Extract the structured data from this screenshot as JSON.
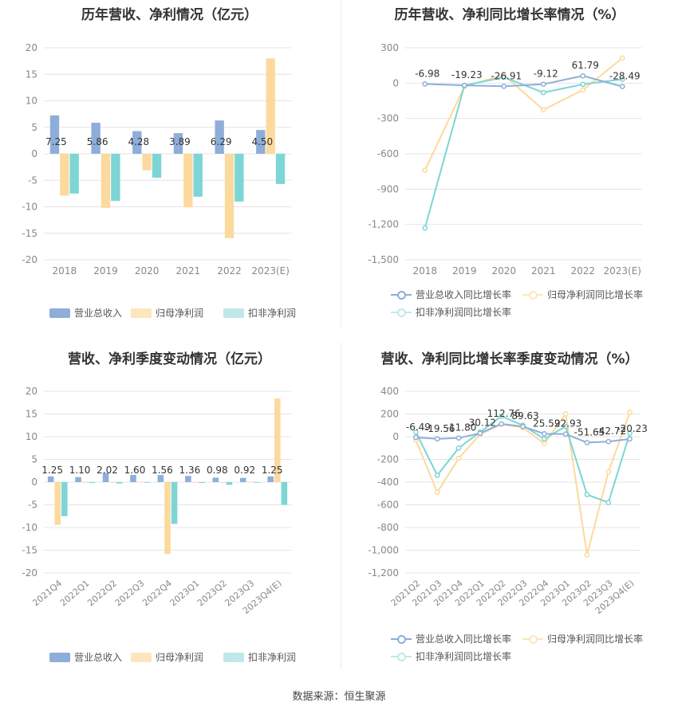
{
  "source": "数据来源：恒生聚源",
  "chart_data": [
    {
      "id": "annual-bar",
      "type": "bar",
      "title": "历年营收、净利情况（亿元）",
      "categories": [
        "2018",
        "2019",
        "2020",
        "2021",
        "2022",
        "2023(E)"
      ],
      "series": [
        {
          "name": "营业总收入",
          "color": "#8eaed9",
          "values": [
            7.25,
            5.86,
            4.28,
            3.89,
            6.29,
            4.5
          ]
        },
        {
          "name": "归母净利润",
          "color": "#fcd99d",
          "values": [
            -7.9,
            -10.2,
            -3.1,
            -10.1,
            -15.9,
            18.0
          ]
        },
        {
          "name": "扣非净利润",
          "color": "#7dd5d6",
          "values": [
            -7.5,
            -8.9,
            -4.5,
            -8.1,
            -9.0,
            -5.7
          ]
        }
      ],
      "data_labels": [
        "7.25",
        "5.86",
        "4.28",
        "3.89",
        "6.29",
        "4.50"
      ],
      "y_ticks": [
        "20",
        "15",
        "10",
        "5",
        "0",
        "-5",
        "-10",
        "-15",
        "-20"
      ],
      "ylim": [
        -20,
        20
      ],
      "grid": true,
      "legend": "bottom"
    },
    {
      "id": "annual-growth",
      "type": "line",
      "title": "历年营收、净利同比增长率情况（%）",
      "categories": [
        "2018",
        "2019",
        "2020",
        "2021",
        "2022",
        "2023(E)"
      ],
      "series": [
        {
          "name": "营业总收入同比增长率",
          "color": "#8eaed9",
          "values": [
            -6.98,
            -19.23,
            -26.91,
            -9.12,
            61.79,
            -28.49
          ]
        },
        {
          "name": "归母净利润同比增长率",
          "color": "#fcd99d",
          "values": [
            -740,
            -28,
            69,
            -226,
            -58,
            213
          ]
        },
        {
          "name": "扣非净利润同比增长率",
          "color": "#7dd5d6",
          "values": [
            -1230,
            -20,
            50,
            -80,
            -10,
            33
          ]
        }
      ],
      "data_labels": [
        "-6.98",
        "-19.23",
        "-26.91",
        "-9.12",
        "61.79",
        "-28.49"
      ],
      "y_ticks": [
        "300",
        "0",
        "-300",
        "-600",
        "-900",
        "-1,200",
        "-1,500"
      ],
      "ylim": [
        -1500,
        300
      ],
      "grid": true,
      "legend": "bottom"
    },
    {
      "id": "quarterly-bar",
      "type": "bar",
      "title": "营收、净利季度变动情况（亿元）",
      "categories": [
        "2021Q4",
        "2022Q1",
        "2022Q2",
        "2022Q3",
        "2022Q4",
        "2023Q1",
        "2023Q2",
        "2023Q3",
        "2023Q4(E)"
      ],
      "series": [
        {
          "name": "营业总收入",
          "color": "#8eaed9",
          "values": [
            1.25,
            1.1,
            2.02,
            1.6,
            1.56,
            1.36,
            0.98,
            0.92,
            1.25
          ]
        },
        {
          "name": "归母净利润",
          "color": "#fcd99d",
          "values": [
            -9.4,
            -0.1,
            -0.1,
            0.1,
            -15.8,
            -0.1,
            -0.1,
            0.1,
            18.4
          ]
        },
        {
          "name": "扣非净利润",
          "color": "#7dd5d6",
          "values": [
            -7.5,
            -0.2,
            -0.3,
            -0.1,
            -9.2,
            -0.2,
            -0.6,
            -0.1,
            -5.0
          ]
        }
      ],
      "data_labels": [
        "1.25",
        "1.10",
        "2.02",
        "1.60",
        "1.56",
        "1.36",
        "0.98",
        "0.92",
        "1.25"
      ],
      "y_ticks": [
        "20",
        "15",
        "10",
        "5",
        "0",
        "-5",
        "-10",
        "-15",
        "-20"
      ],
      "ylim": [
        -20,
        20
      ],
      "grid": true,
      "legend": "bottom"
    },
    {
      "id": "quarterly-growth",
      "type": "line",
      "title": "营收、净利同比增长率季度变动情况（%）",
      "categories": [
        "2021Q2",
        "2021Q3",
        "2021Q4",
        "2022Q1",
        "2022Q2",
        "2022Q3",
        "2022Q4",
        "2023Q1",
        "2023Q2",
        "2023Q3",
        "2023Q4(E)"
      ],
      "series": [
        {
          "name": "营业总收入同比增长率",
          "color": "#8eaed9",
          "values": [
            -6.49,
            -19.56,
            -11.8,
            30.12,
            112.76,
            89.63,
            25.59,
            22.93,
            -51.65,
            -42.72,
            -20.23
          ]
        },
        {
          "name": "归母净利润同比增长率",
          "color": "#fcd99d",
          "values": [
            -30,
            -490,
            -190,
            20,
            110,
            80,
            -60,
            200,
            -1040,
            -310,
            215
          ]
        },
        {
          "name": "扣非净利润同比增长率",
          "color": "#7dd5d6",
          "values": [
            40,
            -340,
            -100,
            40,
            180,
            100,
            -20,
            90,
            -510,
            -580,
            30
          ]
        }
      ],
      "data_labels": [
        "-6.49",
        "-19.56",
        "-11.80",
        "30.12",
        "112.76",
        "89.63",
        "25.59",
        "22.93",
        "-51.65",
        "-42.72",
        "-20.23"
      ],
      "y_ticks": [
        "400",
        "200",
        "0",
        "-200",
        "-400",
        "-600",
        "-800",
        "-1,000",
        "-1,200"
      ],
      "ylim": [
        -1200,
        400
      ],
      "grid": true,
      "legend": "bottom"
    }
  ]
}
